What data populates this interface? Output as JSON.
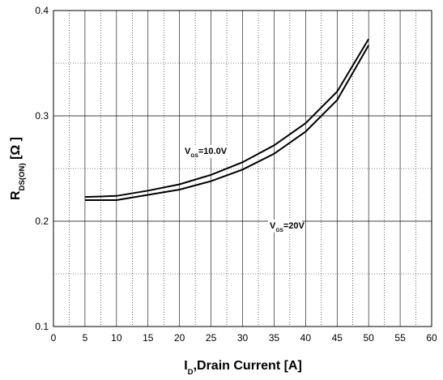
{
  "chart_data": {
    "type": "line",
    "x_label": {
      "main": "I",
      "sub": "D",
      "rest": ",Drain Current [A]"
    },
    "y_label": {
      "main": "R",
      "sub": "DS(ON)",
      "rest": " [Ω ]"
    },
    "annotations": [
      {
        "main": "V",
        "sub": "GS",
        "rest": "=10.0V"
      },
      {
        "main": "V",
        "sub": "GS",
        "rest": "=20V"
      }
    ],
    "x": [
      5,
      10,
      15,
      20,
      25,
      30,
      35,
      40,
      45,
      50
    ],
    "series": [
      {
        "color": "#000000",
        "values": [
          0.223,
          0.224,
          0.229,
          0.235,
          0.244,
          0.256,
          0.272,
          0.293,
          0.323,
          0.373
        ]
      },
      {
        "color": "#000000",
        "values": [
          0.22,
          0.22,
          0.225,
          0.23,
          0.238,
          0.249,
          0.264,
          0.285,
          0.315,
          0.367
        ]
      }
    ],
    "xlim": [
      0,
      60
    ],
    "xticks": [
      0,
      5,
      10,
      15,
      20,
      25,
      30,
      35,
      40,
      45,
      50,
      55,
      60
    ],
    "ylim": [
      0.1,
      0.4
    ],
    "yticks": [
      0.1,
      0.2,
      0.3,
      0.4
    ],
    "grid": true
  }
}
